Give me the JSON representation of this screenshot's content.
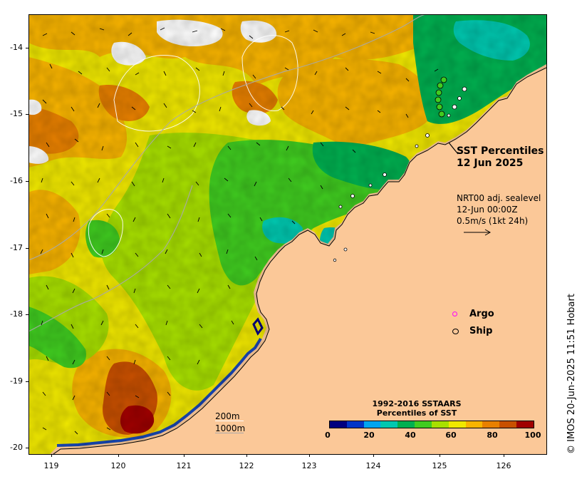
{
  "title": {
    "line1": "SST Percentiles",
    "line2": "12 Jun 2025"
  },
  "vector_legend": {
    "line1": "NRT00 adj. sealevel",
    "line2": "12-Jun 00:00Z",
    "line3": "0.5m/s (1kt 24h)"
  },
  "markers": [
    {
      "label": "Argo",
      "color": "#ff00ff",
      "icon": "argo-circle-icon"
    },
    {
      "label": "Ship",
      "color": "#000000",
      "icon": "ship-circle-icon"
    }
  ],
  "contour_legend": {
    "line1": "200m",
    "line2": "1000m"
  },
  "colorbar": {
    "title_line1": "1992-2016 SSTAARS",
    "title_line2": "Percentiles of SST",
    "colors": [
      "#00007f",
      "#0035c8",
      "#00a4f0",
      "#00c8b0",
      "#00b050",
      "#40cc20",
      "#a8e000",
      "#f0e800",
      "#f8b400",
      "#e88000",
      "#c85000",
      "#a00000"
    ],
    "tick_labels": [
      "0",
      "20",
      "40",
      "60",
      "80",
      "100"
    ]
  },
  "axes": {
    "x_ticks": [
      "119",
      "120",
      "121",
      "122",
      "123",
      "124",
      "125",
      "126"
    ],
    "y_ticks": [
      "-14",
      "-15",
      "-16",
      "-17",
      "-18",
      "-19",
      "-20"
    ],
    "xlim": [
      118.65,
      126.75
    ],
    "ylim": [
      -20.08,
      -13.55
    ]
  },
  "land_color": "#fbc898",
  "credit": "© IMOS 20-Jun-2025 11:51 Hobart"
}
